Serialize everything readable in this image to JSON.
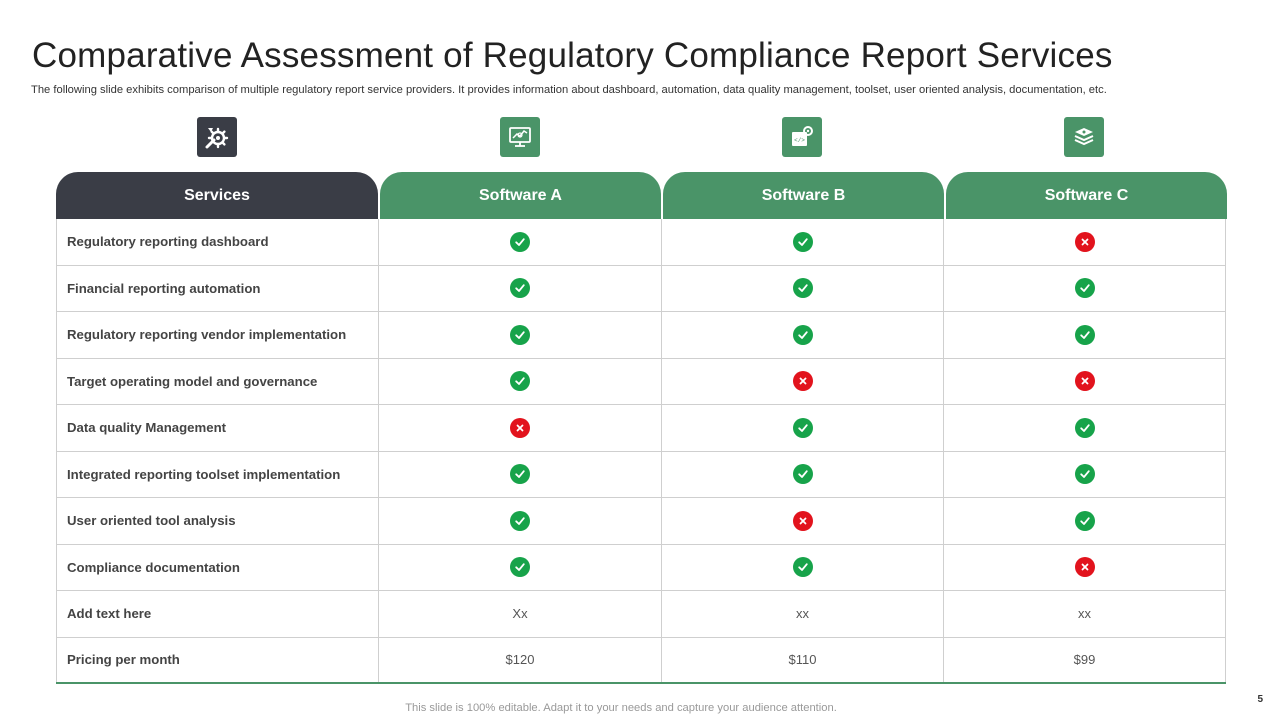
{
  "title": "Comparative Assessment of Regulatory Compliance Report Services",
  "subtitle": "The following slide exhibits comparison of multiple regulatory report service providers. It provides information about dashboard, automation, data quality management, toolset, user oriented analysis, documentation, etc.",
  "header_icons": [
    "tools-gear-icon",
    "monitor-chart-icon",
    "code-gear-icon",
    "layers-icon"
  ],
  "table": {
    "headers": [
      "Services",
      "Software A",
      "Software B",
      "Software C"
    ],
    "rows": [
      {
        "label": "Regulatory reporting dashboard",
        "a": "check",
        "b": "check",
        "c": "cross"
      },
      {
        "label": "Financial reporting automation",
        "a": "check",
        "b": "check",
        "c": "check"
      },
      {
        "label": "Regulatory reporting vendor implementation",
        "a": "check",
        "b": "check",
        "c": "check"
      },
      {
        "label": "Target operating model and governance",
        "a": "check",
        "b": "cross",
        "c": "cross"
      },
      {
        "label": "Data quality Management",
        "a": "cross",
        "b": "check",
        "c": "check"
      },
      {
        "label": "Integrated reporting toolset implementation",
        "a": "check",
        "b": "check",
        "c": "check"
      },
      {
        "label": "User oriented tool analysis",
        "a": "check",
        "b": "cross",
        "c": "check"
      },
      {
        "label": "Compliance documentation",
        "a": "check",
        "b": "check",
        "c": "cross"
      },
      {
        "label": "Add text here",
        "a": "Xx",
        "b": "xx",
        "c": "xx"
      },
      {
        "label": "Pricing per month",
        "a": "$120",
        "b": "$110",
        "c": "$99"
      }
    ]
  },
  "colors": {
    "dark": "#3a3d46",
    "green": "#4a9468",
    "check": "#17a34a",
    "cross": "#e2131d"
  },
  "footer": "This slide is 100% editable. Adapt it to your  needs and capture your audience attention.",
  "page_number": "5"
}
